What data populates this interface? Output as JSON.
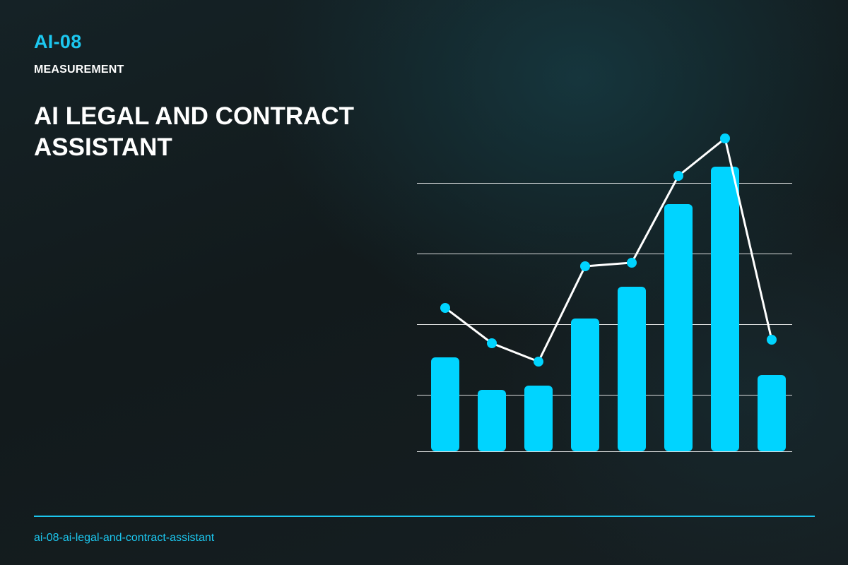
{
  "header": {
    "code": "AI-08",
    "category": "MEASUREMENT",
    "title": "AI LEGAL AND CONTRACT ASSISTANT"
  },
  "footer": {
    "slug": "ai-08-ai-legal-and-contract-assistant"
  },
  "colors": {
    "accent": "#1cc7ef",
    "bar": "#00d4ff",
    "line": "#ffffff",
    "grid": "#ffffff"
  },
  "chart_data": {
    "type": "bar",
    "title": "",
    "xlabel": "",
    "ylabel": "",
    "grid": true,
    "ylim": [
      0,
      4
    ],
    "categories": [
      "",
      "",
      "",
      "",
      "",
      "",
      "",
      ""
    ],
    "series": [
      {
        "type": "bar",
        "values": [
          1.33,
          0.87,
          0.93,
          1.88,
          2.33,
          3.5,
          4.03,
          1.08
        ]
      },
      {
        "type": "line",
        "values": [
          2.03,
          1.53,
          1.27,
          2.62,
          2.67,
          3.9,
          4.43,
          1.58
        ]
      }
    ]
  }
}
